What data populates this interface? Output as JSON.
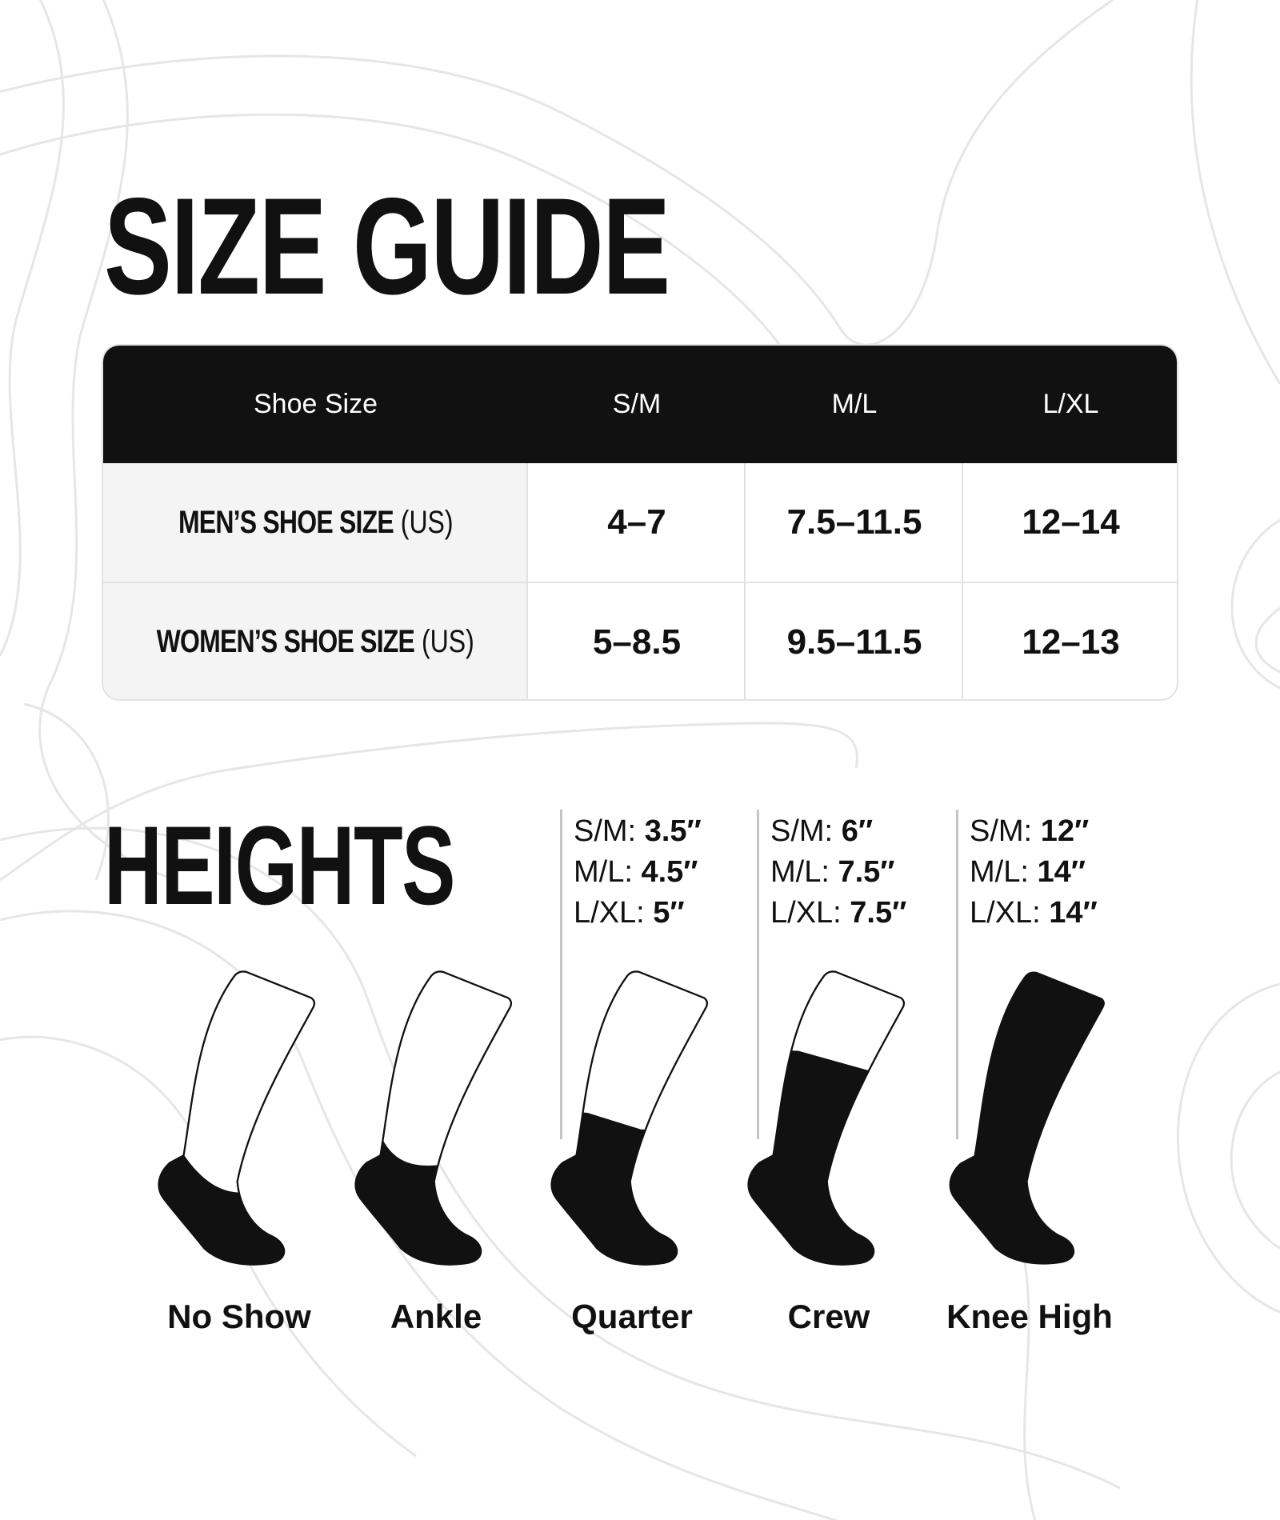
{
  "title": "SIZE GUIDE",
  "table": {
    "headers": [
      "Shoe Size",
      "S/M",
      "M/L",
      "L/XL"
    ],
    "rows": [
      {
        "label": "MEN’S SHOE SIZE",
        "unit": "(US)",
        "values": [
          "4–7",
          "7.5–11.5",
          "12–14"
        ]
      },
      {
        "label": "WOMEN’S SHOE SIZE",
        "unit": "(US)",
        "values": [
          "5–8.5",
          "9.5–11.5",
          "12–13"
        ]
      }
    ]
  },
  "heights": {
    "title": "HEIGHTS",
    "columns": [
      {
        "lines": [
          {
            "size": "S/M:",
            "value": "3.5″"
          },
          {
            "size": "M/L:",
            "value": "4.5″"
          },
          {
            "size": "L/XL:",
            "value": "5″"
          }
        ]
      },
      {
        "lines": [
          {
            "size": "S/M:",
            "value": "6″"
          },
          {
            "size": "M/L:",
            "value": "7.5″"
          },
          {
            "size": "L/XL:",
            "value": "7.5″"
          }
        ]
      },
      {
        "lines": [
          {
            "size": "S/M:",
            "value": "12″"
          },
          {
            "size": "M/L:",
            "value": "14″"
          },
          {
            "size": "L/XL:",
            "value": "14″"
          }
        ]
      }
    ],
    "socks": [
      {
        "label": "No Show",
        "icon": "no-show-sock-icon"
      },
      {
        "label": "Ankle",
        "icon": "ankle-sock-icon"
      },
      {
        "label": "Quarter",
        "icon": "quarter-sock-icon"
      },
      {
        "label": "Crew",
        "icon": "crew-sock-icon"
      },
      {
        "label": "Knee High",
        "icon": "knee-high-sock-icon"
      }
    ]
  },
  "colors": {
    "ink": "#111111",
    "header_bg": "#111111",
    "row_label_bg": "#f4f4f4",
    "contour": "#e6e6e6"
  }
}
